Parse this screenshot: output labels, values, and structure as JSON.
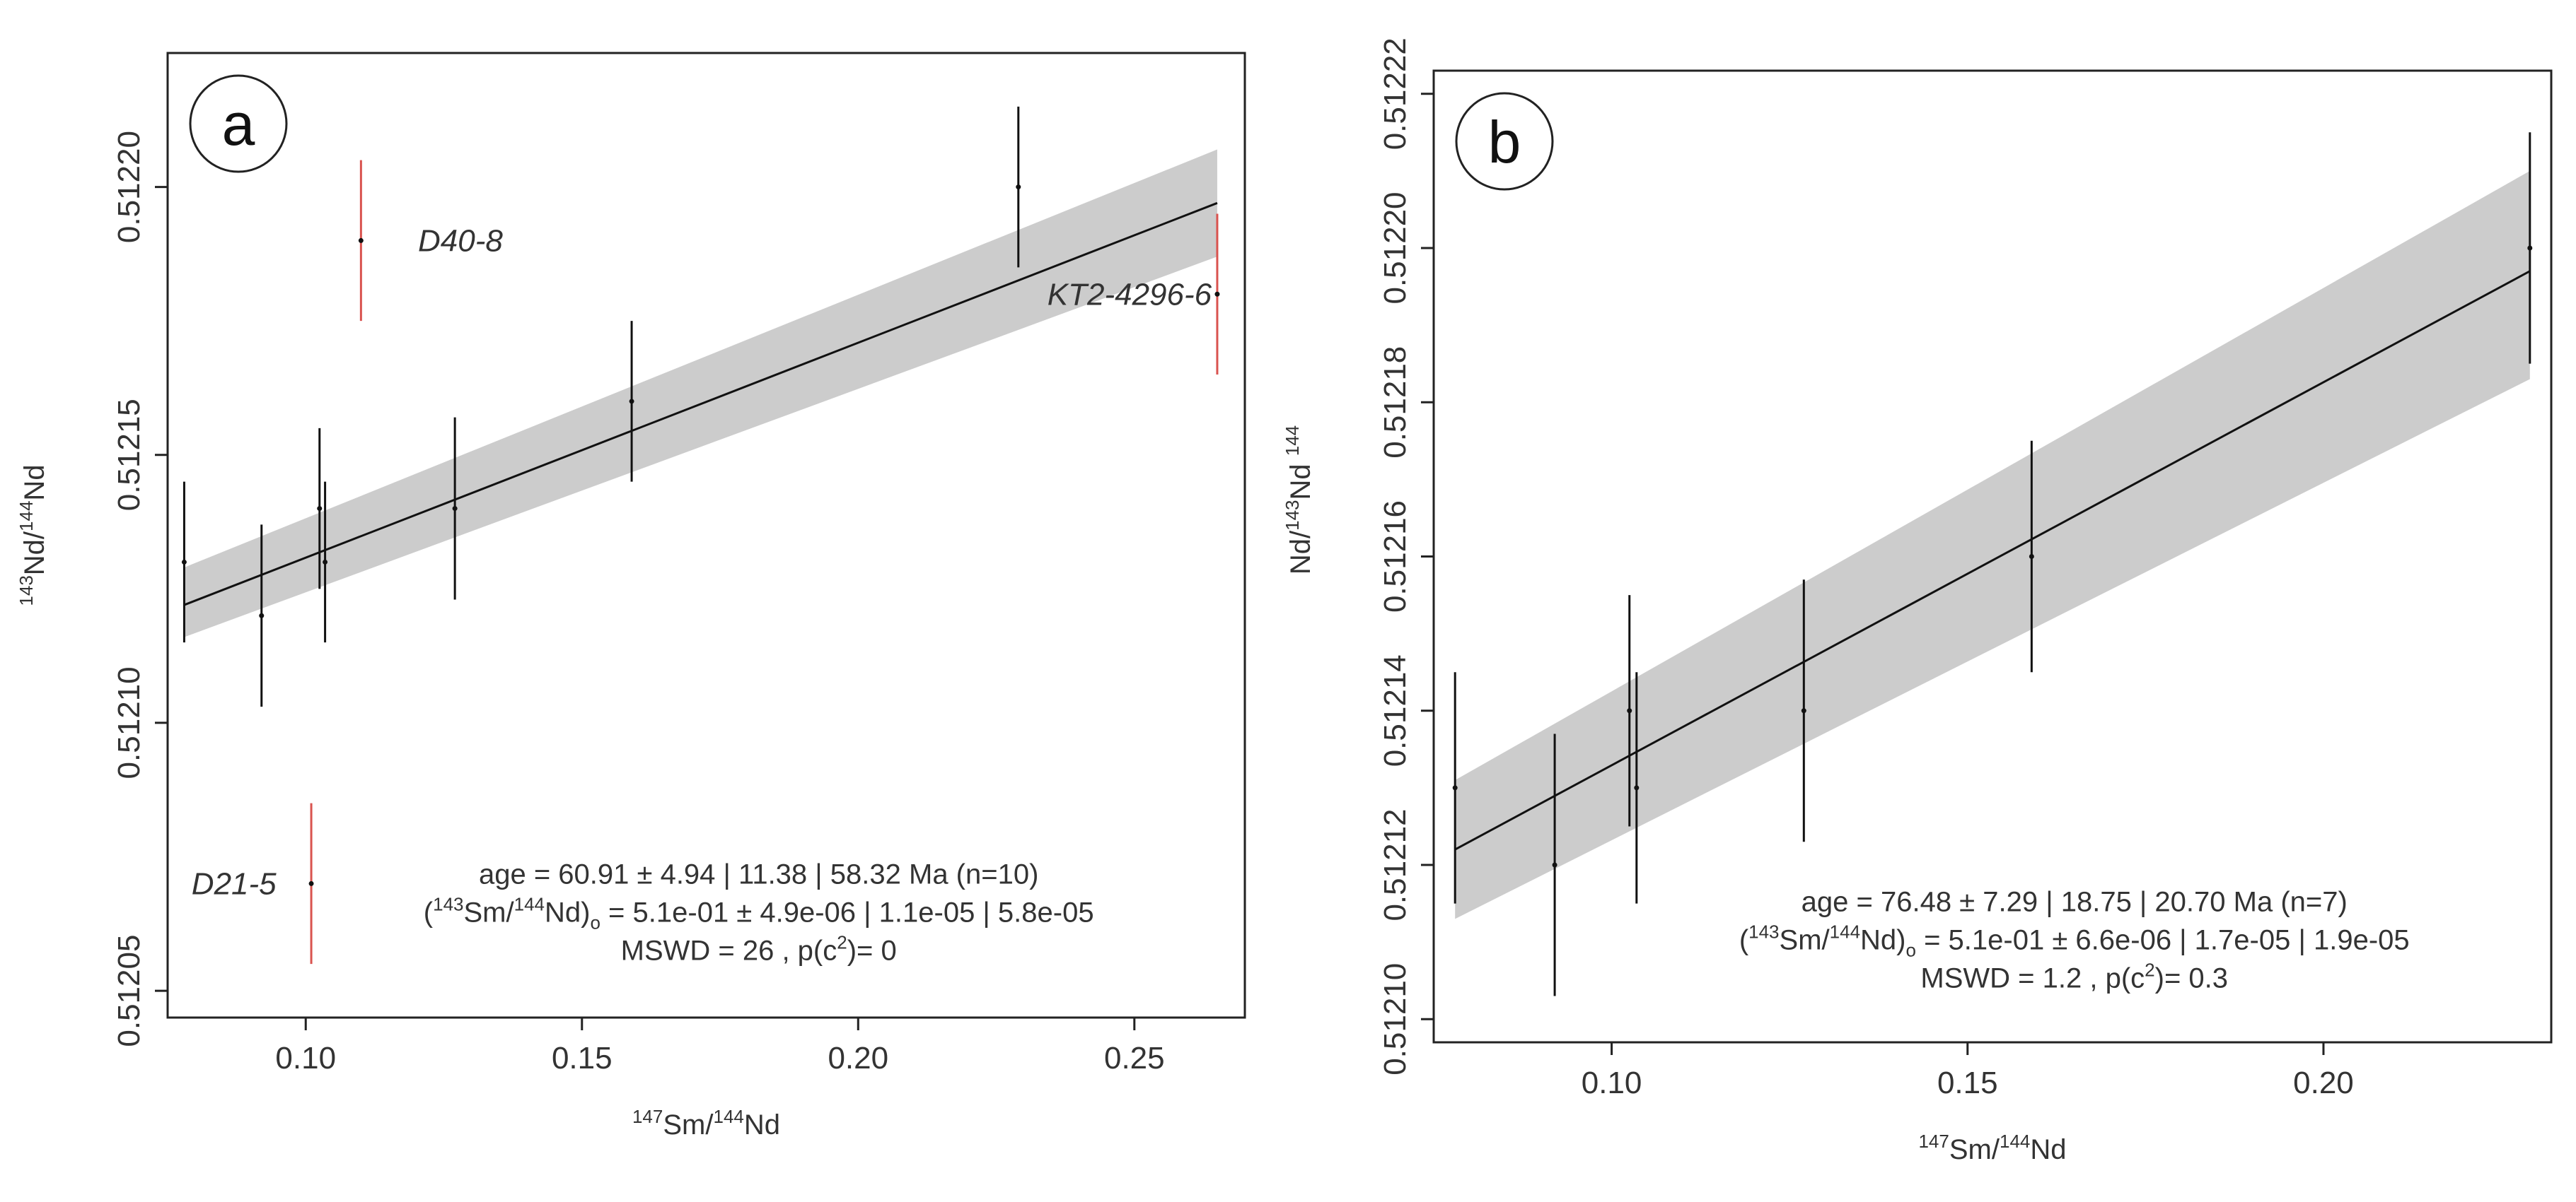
{
  "chart_data": [
    {
      "panel": "a",
      "type": "scatter",
      "xlabel": {
        "sup1": "147",
        "base1": "Sm/",
        "sup2": "144",
        "base2": "Nd"
      },
      "ylabel": {
        "sup1": "143",
        "base1": "Nd/",
        "sup2": "144",
        "base2": "Nd"
      },
      "xlim": [
        0.075,
        0.27
      ],
      "ylim": [
        0.512045,
        0.512225
      ],
      "xticks": [
        0.1,
        0.15,
        0.2,
        0.25
      ],
      "xtick_labels": [
        "0.10",
        "0.15",
        "0.20",
        "0.25"
      ],
      "yticks": [
        0.51205,
        0.5121,
        0.51215,
        0.5122
      ],
      "ytick_labels": [
        "0.51205",
        "0.51210",
        "0.51215",
        "0.51220"
      ],
      "points": [
        {
          "x": 0.078,
          "y": 0.51213,
          "err": 1.5e-05,
          "outlier": false
        },
        {
          "x": 0.092,
          "y": 0.51212,
          "err": 1.7e-05,
          "outlier": false
        },
        {
          "x": 0.1025,
          "y": 0.51214,
          "err": 1.5e-05,
          "outlier": false
        },
        {
          "x": 0.1035,
          "y": 0.51213,
          "err": 1.5e-05,
          "outlier": false
        },
        {
          "x": 0.127,
          "y": 0.51214,
          "err": 1.7e-05,
          "outlier": false
        },
        {
          "x": 0.159,
          "y": 0.51216,
          "err": 1.5e-05,
          "outlier": false
        },
        {
          "x": 0.229,
          "y": 0.5122,
          "err": 1.5e-05,
          "outlier": false
        },
        {
          "x": 0.11,
          "y": 0.51219,
          "err": 1.5e-05,
          "outlier": true
        },
        {
          "x": 0.265,
          "y": 0.51218,
          "err": 1.5e-05,
          "outlier": true
        },
        {
          "x": 0.101,
          "y": 0.51207,
          "err": 1.5e-05,
          "outlier": true
        }
      ],
      "labels": [
        {
          "text": "D40-8",
          "x": 0.128,
          "y": 0.51219,
          "anchor": "middle"
        },
        {
          "text": "KT2-4296-6",
          "x": 0.264,
          "y": 0.51218,
          "anchor": "end"
        },
        {
          "text": "D21-5",
          "x": 0.087,
          "y": 0.51207,
          "anchor": "middle"
        }
      ],
      "fit": {
        "x0": 0.078,
        "y0": 0.512122,
        "x1": 0.265,
        "y1": 0.512197,
        "band_x0": 0.078,
        "band_lo0": 0.512116,
        "band_hi0": 0.512129,
        "band_x1": 0.265,
        "band_lo1": 0.512187,
        "band_hi1": 0.512207
      },
      "stats": {
        "line1": "age = 60.91 ± 4.94 | 11.38 | 58.32 Ma (n=10)",
        "line2_open": "(",
        "line2_sup1": "143",
        "line2_mid": "Sm/",
        "line2_sup2": "144",
        "line2_close": "Nd)",
        "line2_sub": "o",
        "line2_rest": " =  5.1e-01 ± 4.9e-06  | 1.1e-05  | 5.8e-05",
        "line3_a": "MSWD = 26 , p(c",
        "line3_sup": "2",
        "line3_b": ")= 0"
      },
      "stats_pos": {
        "x": 0.182,
        "y": 0.51207
      },
      "letter": "a"
    },
    {
      "panel": "b",
      "type": "scatter",
      "xlabel": {
        "sup1": "147",
        "base1": "Sm/",
        "sup2": "144",
        "base2": "Nd"
      },
      "ylabel": {
        "base0": "Nd/",
        "sup1": "143",
        "base1": "Nd ",
        "sup2": "144"
      },
      "xlim": [
        0.075,
        0.232
      ],
      "ylim": [
        0.512097,
        0.512223
      ],
      "xticks": [
        0.1,
        0.15,
        0.2
      ],
      "xtick_labels": [
        "0.10",
        "0.15",
        "0.20"
      ],
      "yticks": [
        0.5121,
        0.51212,
        0.51214,
        0.51216,
        0.51218,
        0.5122,
        0.51222
      ],
      "ytick_labels": [
        "0.51210",
        "0.51212",
        "0.51214",
        "0.51216",
        "0.51218",
        "0.51220",
        "0.51222"
      ],
      "points": [
        {
          "x": 0.078,
          "y": 0.51213,
          "err": 1.5e-05,
          "outlier": false
        },
        {
          "x": 0.092,
          "y": 0.51212,
          "err": 1.7e-05,
          "outlier": false
        },
        {
          "x": 0.1025,
          "y": 0.51214,
          "err": 1.5e-05,
          "outlier": false
        },
        {
          "x": 0.1035,
          "y": 0.51213,
          "err": 1.5e-05,
          "outlier": false
        },
        {
          "x": 0.127,
          "y": 0.51214,
          "err": 1.7e-05,
          "outlier": false
        },
        {
          "x": 0.159,
          "y": 0.51216,
          "err": 1.5e-05,
          "outlier": false
        },
        {
          "x": 0.229,
          "y": 0.5122,
          "err": 1.5e-05,
          "outlier": false
        }
      ],
      "labels": [],
      "fit": {
        "x0": 0.078,
        "y0": 0.512122,
        "x1": 0.229,
        "y1": 0.512197,
        "band_x0": 0.078,
        "band_lo0": 0.512113,
        "band_hi0": 0.512131,
        "band_x1": 0.229,
        "band_lo1": 0.512183,
        "band_hi1": 0.51221
      },
      "stats": {
        "line1": "age = 76.48 ± 7.29 | 18.75 | 20.70 Ma (n=7)",
        "line2_open": "(",
        "line2_sup1": "143",
        "line2_mid": "Sm/",
        "line2_sup2": "144",
        "line2_close": "Nd)",
        "line2_sub": "o",
        "line2_rest": " =  5.1e-01 ± 6.6e-06  | 1.7e-05  | 1.9e-05",
        "line3_a": "MSWD = 1.2 , p(c",
        "line3_sup": "2",
        "line3_b": ")= 0.3"
      },
      "stats_pos": {
        "x": 0.165,
        "y": 0.512114
      },
      "letter": "b"
    }
  ],
  "colors": {
    "error_bar": "#111111",
    "outlier": "#d9534f",
    "band": "#cccccc",
    "fit_line": "#111111",
    "axis": "#222222"
  }
}
